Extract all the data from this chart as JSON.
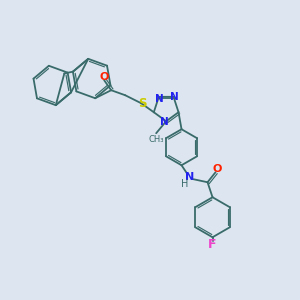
{
  "background_color": "#dde6f0",
  "bond_color": "#3a6b6b",
  "atom_colors": {
    "O": "#ff2200",
    "N": "#2222ee",
    "S": "#cccc00",
    "F": "#ee44cc",
    "H": "#444444",
    "C": "#3a6b6b"
  },
  "figsize": [
    3.0,
    3.0
  ],
  "dpi": 100
}
